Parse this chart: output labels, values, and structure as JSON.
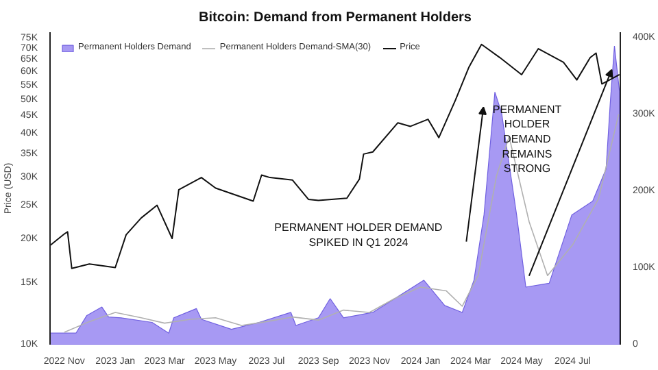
{
  "chart_data": {
    "type": "line",
    "title": "Bitcoin: Demand from Permanent Holders",
    "ylabel": "Price (USD)",
    "log": true,
    "legend": "top",
    "xlim": [
      "2022-10-15",
      "2024-08-27"
    ],
    "xticks": [
      {
        "value": "2022-11-01",
        "label": "2022 Nov"
      },
      {
        "value": "2023-01-01",
        "label": "2023 Jan"
      },
      {
        "value": "2023-03-01",
        "label": "2023 Mar"
      },
      {
        "value": "2023-05-01",
        "label": "2023 May"
      },
      {
        "value": "2023-07-01",
        "label": "2023 Jul"
      },
      {
        "value": "2023-09-01",
        "label": "2023 Sep"
      },
      {
        "value": "2023-11-01",
        "label": "2023 Nov"
      },
      {
        "value": "2024-01-01",
        "label": "2024 Jan"
      },
      {
        "value": "2024-03-01",
        "label": "2024 Mar"
      },
      {
        "value": "2024-05-01",
        "label": "2024 May"
      },
      {
        "value": "2024-07-01",
        "label": "2024 Jul"
      }
    ],
    "ylim": [
      10000,
      78000
    ],
    "yticks": [
      {
        "value": 10000,
        "label": "10K"
      },
      {
        "value": 15000,
        "label": "15K"
      },
      {
        "value": 20000,
        "label": "20K"
      },
      {
        "value": 25000,
        "label": "25K"
      },
      {
        "value": 30000,
        "label": "30K"
      },
      {
        "value": 35000,
        "label": "35K"
      },
      {
        "value": 40000,
        "label": "40K"
      },
      {
        "value": 45000,
        "label": "45K"
      },
      {
        "value": 50000,
        "label": "50K"
      },
      {
        "value": 55000,
        "label": "55K"
      },
      {
        "value": 60000,
        "label": "60K"
      },
      {
        "value": 65000,
        "label": "65K"
      },
      {
        "value": 70000,
        "label": "70K"
      },
      {
        "value": 75000,
        "label": "75K"
      }
    ],
    "y2lim": [
      0,
      407000
    ],
    "y2ticks": [
      0,
      {
        "value": 100000,
        "label": "100K"
      },
      {
        "value": 200000,
        "label": "200K"
      },
      {
        "value": 300000,
        "label": "300K"
      },
      {
        "value": 400000,
        "label": "400K"
      }
    ],
    "annotations": [
      "PERMANENT HOLDER DEMAND\nSPIKED IN Q1 2024",
      "PERMANENT\nHOLDER\nDEMAND\nREMAINS\nSTRONG"
    ],
    "series": [
      {
        "name": "Permanent Holders Demand",
        "type": "area",
        "axis": "y2",
        "color": "#9d8ef2",
        "x": [
          "2022-10-15",
          "2022-11-15",
          "2022-11-28",
          "2022-12-16",
          "2022-12-24",
          "2023-01-08",
          "2023-02-14",
          "2023-03-06",
          "2023-03-12",
          "2023-04-08",
          "2023-04-14",
          "2023-05-20",
          "2023-06-22",
          "2023-07-30",
          "2023-08-05",
          "2023-09-01",
          "2023-09-15",
          "2023-10-01",
          "2023-11-05",
          "2024-01-05",
          "2024-01-30",
          "2024-02-20",
          "2024-03-05",
          "2024-03-17",
          "2024-03-30",
          "2024-04-07",
          "2024-04-25",
          "2024-05-06",
          "2024-06-03",
          "2024-06-30",
          "2024-07-25",
          "2024-08-10",
          "2024-08-15",
          "2024-08-20",
          "2024-08-26"
        ],
        "values": [
          15000,
          15000,
          38000,
          49000,
          36000,
          35000,
          29000,
          15000,
          35000,
          47000,
          33000,
          20000,
          29000,
          42000,
          25000,
          35000,
          60000,
          35000,
          42000,
          84000,
          51000,
          42000,
          84000,
          169000,
          329000,
          302000,
          169000,
          75000,
          80000,
          169000,
          187000,
          229000,
          315000,
          389000,
          330000
        ]
      },
      {
        "name": "Permanent Holders Demand-SMA(30)",
        "type": "line",
        "axis": "y2",
        "color": "#b0b0b0",
        "x": [
          "2022-11-01",
          "2022-12-01",
          "2023-01-01",
          "2023-02-01",
          "2023-03-01",
          "2023-04-01",
          "2023-05-01",
          "2023-06-01",
          "2023-07-01",
          "2023-08-01",
          "2023-09-01",
          "2023-10-01",
          "2023-11-01",
          "2023-12-01",
          "2024-01-01",
          "2024-02-01",
          "2024-02-20",
          "2024-03-10",
          "2024-04-01",
          "2024-04-16",
          "2024-05-10",
          "2024-06-01",
          "2024-07-01",
          "2024-08-01",
          "2024-08-25"
        ],
        "values": [
          16000,
          30000,
          42000,
          35000,
          28000,
          33000,
          35000,
          25000,
          30000,
          36000,
          32000,
          45000,
          42000,
          60000,
          75000,
          70000,
          50000,
          90000,
          220000,
          271000,
          160000,
          90000,
          130000,
          190000,
          300000
        ]
      },
      {
        "name": "Price",
        "color": "#111111",
        "x": [
          "2022-10-15",
          "2022-11-01",
          "2022-11-05",
          "2022-11-10",
          "2022-12-01",
          "2023-01-01",
          "2023-01-14",
          "2023-02-01",
          "2023-02-20",
          "2023-03-10",
          "2023-03-18",
          "2023-04-14",
          "2023-05-01",
          "2023-06-15",
          "2023-06-25",
          "2023-07-05",
          "2023-08-01",
          "2023-08-20",
          "2023-09-01",
          "2023-10-05",
          "2023-10-20",
          "2023-10-25",
          "2023-11-05",
          "2023-12-05",
          "2023-12-20",
          "2024-01-10",
          "2024-01-23",
          "2024-02-12",
          "2024-02-28",
          "2024-03-14",
          "2024-04-05",
          "2024-05-01",
          "2024-05-21",
          "2024-06-20",
          "2024-07-06",
          "2024-07-22",
          "2024-07-29",
          "2024-08-05",
          "2024-08-26"
        ],
        "values": [
          19200,
          20700,
          21000,
          16500,
          17000,
          16600,
          20600,
          23000,
          25000,
          20100,
          27700,
          30000,
          28000,
          25700,
          30500,
          30000,
          29500,
          26000,
          25800,
          26200,
          29700,
          35000,
          35500,
          43000,
          42000,
          44000,
          39000,
          50000,
          62000,
          72000,
          66000,
          59000,
          70000,
          64000,
          57000,
          66000,
          68000,
          55500,
          59000
        ]
      }
    ]
  }
}
